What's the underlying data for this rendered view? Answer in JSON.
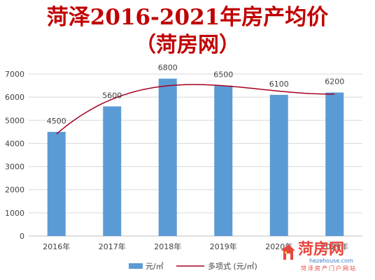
{
  "title_line1": "菏泽2016-2021年房产均价",
  "title_line2": "（菏房网）",
  "chart_data": {
    "type": "bar",
    "categories": [
      "2016年",
      "2017年",
      "2018年",
      "2019年",
      "2020年",
      "2021年"
    ],
    "series": [
      {
        "name": "元/㎡",
        "type": "bar",
        "values": [
          4500,
          5600,
          6800,
          6500,
          6100,
          6200
        ],
        "color": "#5b9bd5"
      },
      {
        "name": "多项式 (元/㎡)",
        "type": "line",
        "trendline": "polynomial",
        "values": [
          4500,
          5600,
          6800,
          6500,
          6100,
          6200
        ],
        "color": "#a50021"
      }
    ],
    "yticks": [
      0,
      1000,
      2000,
      3000,
      4000,
      5000,
      6000,
      7000
    ],
    "ylim": [
      0,
      7000
    ],
    "grid": true,
    "legend": "bottom"
  },
  "watermark": {
    "logo_text": "菏房网",
    "url": "hezehouse.com",
    "tagline": "菏泽房产门户网站"
  }
}
